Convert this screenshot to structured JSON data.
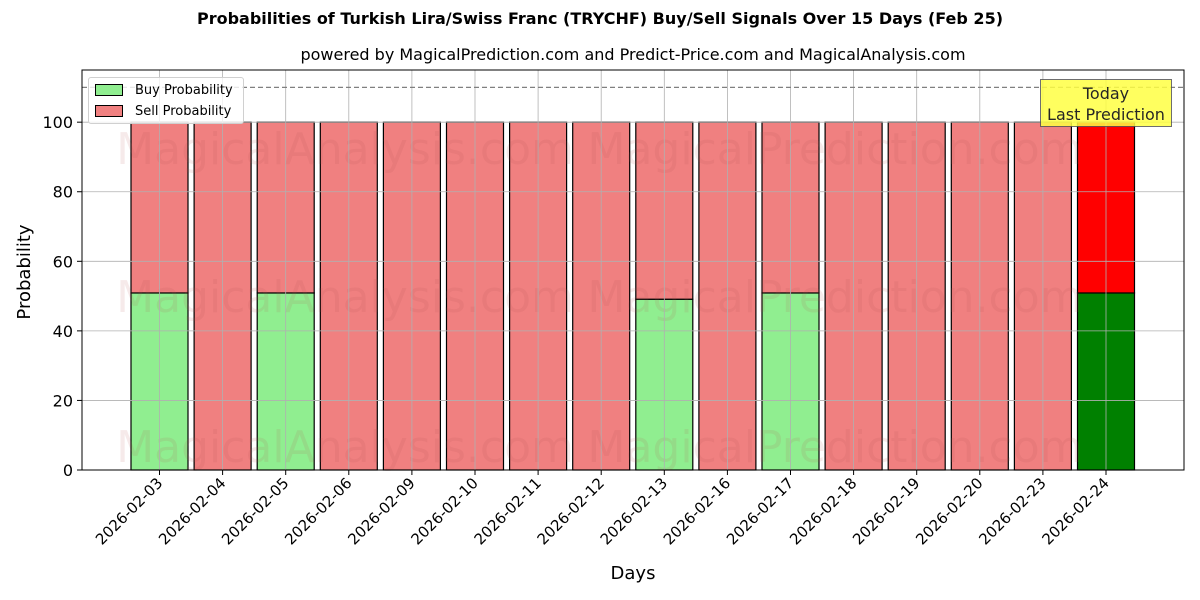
{
  "chart_data": {
    "type": "bar",
    "stacked": true,
    "title": "Probabilities of Turkish Lira/Swiss Franc (TRYCHF) Buy/Sell Signals Over 15 Days (Feb 25)",
    "subtitle": "powered by MagicalPrediction.com and Predict-Price.com and MagicalAnalysis.com",
    "xlabel": "Days",
    "ylabel": "Probability",
    "ylim": [
      0,
      115
    ],
    "yticks": [
      0,
      20,
      40,
      60,
      80,
      100
    ],
    "grid": true,
    "legend_position": "upper left",
    "reference_line": {
      "y": 110,
      "style": "dashed",
      "color": "#808080"
    },
    "categories": [
      "2026-02-03",
      "2026-02-04",
      "2026-02-05",
      "2026-02-06",
      "2026-02-09",
      "2026-02-10",
      "2026-02-11",
      "2026-02-12",
      "2026-02-13",
      "2026-02-16",
      "2026-02-17",
      "2026-02-18",
      "2026-02-19",
      "2026-02-20",
      "2026-02-23",
      "2026-02-24"
    ],
    "series": [
      {
        "name": "Buy Probability",
        "color": "#90ee90",
        "highlight_color": "#008000",
        "values": [
          50.9,
          0,
          50.9,
          0,
          0,
          0,
          0,
          0,
          49.1,
          0,
          50.9,
          0,
          0,
          0,
          0,
          50.9
        ]
      },
      {
        "name": "Sell Probability",
        "color": "#f08080",
        "highlight_color": "#ff0000",
        "values": [
          49.1,
          100,
          49.1,
          100,
          100,
          100,
          100,
          100,
          50.9,
          100,
          49.1,
          100,
          100,
          100,
          100,
          49.1
        ]
      }
    ],
    "highlight_index": 15,
    "annotation": {
      "line1": "Today",
      "line2": "Last Prediction"
    },
    "watermarks": [
      "MagicalAnalysis.com",
      "MagicalPrediction.com"
    ]
  }
}
